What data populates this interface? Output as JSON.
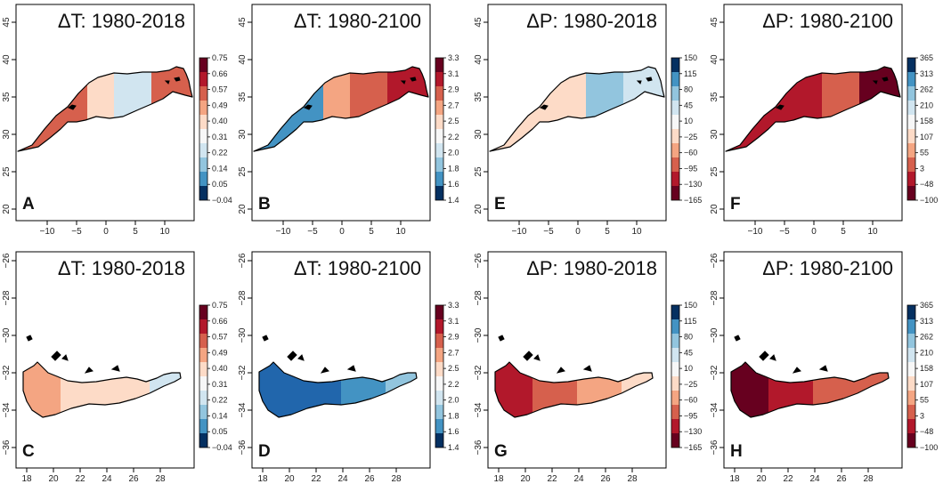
{
  "figure": {
    "panels": [
      {
        "label": "A",
        "title": "ΔT: 1980-2018",
        "region": "north",
        "variable": "temperature",
        "scale": "dT_recent",
        "x_ticks": [
          "−10",
          "−5",
          "0",
          "5",
          "10"
        ],
        "y_ticks": [
          "20",
          "25",
          "30",
          "35",
          "40",
          "45"
        ],
        "fill_colors": [
          "#d6604d",
          "#fddbc7",
          "#d1e5f0",
          "#d6604d"
        ]
      },
      {
        "label": "B",
        "title": "ΔT: 1980-2100",
        "region": "north",
        "variable": "temperature",
        "scale": "dT_future",
        "x_ticks": [
          "−10",
          "−5",
          "0",
          "5",
          "10"
        ],
        "y_ticks": [
          "20",
          "25",
          "30",
          "35",
          "40",
          "45"
        ],
        "fill_colors": [
          "#4393c3",
          "#f4a582",
          "#d6604d",
          "#b2182b"
        ]
      },
      {
        "label": "E",
        "title": "ΔP: 1980-2018",
        "region": "north",
        "variable": "precipitation",
        "scale": "dP",
        "x_ticks": [
          "−10",
          "−5",
          "0",
          "5",
          "10"
        ],
        "y_ticks": [
          "20",
          "25",
          "30",
          "35",
          "40",
          "45"
        ],
        "fill_colors": [
          "#fddbc7",
          "#fddbc7",
          "#92c5de",
          "#d1e5f0"
        ]
      },
      {
        "label": "F",
        "title": "ΔP: 1980-2100",
        "region": "north",
        "variable": "precipitation",
        "scale": "dP_future",
        "x_ticks": [
          "−10",
          "−5",
          "0",
          "5",
          "10"
        ],
        "y_ticks": [
          "20",
          "25",
          "30",
          "35",
          "40",
          "45"
        ],
        "fill_colors": [
          "#b2182b",
          "#b2182b",
          "#d6604d",
          "#67001f"
        ]
      },
      {
        "label": "C",
        "title": "ΔT: 1980-2018",
        "region": "south",
        "variable": "temperature",
        "scale": "dT_recent",
        "x_ticks": [
          "18",
          "20",
          "22",
          "24",
          "26",
          "28"
        ],
        "y_ticks": [
          "−26",
          "−28",
          "−30",
          "−32",
          "−34",
          "−36"
        ],
        "fill_colors": [
          "#f4a582",
          "#fddbc7",
          "#fddbc7",
          "#d1e5f0"
        ]
      },
      {
        "label": "D",
        "title": "ΔT: 1980-2100",
        "region": "south",
        "variable": "temperature",
        "scale": "dT_future",
        "x_ticks": [
          "18",
          "20",
          "22",
          "24",
          "26",
          "28"
        ],
        "y_ticks": [
          "−26",
          "−28",
          "−30",
          "−32",
          "−34",
          "−36"
        ],
        "fill_colors": [
          "#2166ac",
          "#2166ac",
          "#4393c3",
          "#92c5de"
        ]
      },
      {
        "label": "G",
        "title": "ΔP: 1980-2018",
        "region": "south",
        "variable": "precipitation",
        "scale": "dP",
        "x_ticks": [
          "18",
          "20",
          "22",
          "24",
          "26",
          "28"
        ],
        "y_ticks": [
          "−26",
          "−28",
          "−30",
          "−32",
          "−34",
          "−36"
        ],
        "fill_colors": [
          "#b2182b",
          "#d6604d",
          "#f4a582",
          "#fddbc7"
        ]
      },
      {
        "label": "H",
        "title": "ΔP: 1980-2100",
        "region": "south",
        "variable": "precipitation",
        "scale": "dP_future",
        "x_ticks": [
          "18",
          "20",
          "22",
          "24",
          "26",
          "28"
        ],
        "y_ticks": [
          "−26",
          "−28",
          "−30",
          "−32",
          "−34",
          "−36"
        ],
        "fill_colors": [
          "#67001f",
          "#b2182b",
          "#d6604d",
          "#d6604d"
        ]
      }
    ],
    "colorbars": {
      "dT_recent": {
        "labels": [
          "0.75",
          "0.66",
          "0.57",
          "0.49",
          "0.40",
          "0.31",
          "0.22",
          "0.14",
          "0.05",
          "−0.04"
        ],
        "colors": [
          "#67001f",
          "#b2182b",
          "#d6604d",
          "#f4a582",
          "#fddbc7",
          "#f7f7f7",
          "#d1e5f0",
          "#92c5de",
          "#4393c3",
          "#053061"
        ]
      },
      "dT_future": {
        "labels": [
          "3.3",
          "3.1",
          "2.9",
          "2.7",
          "2.5",
          "2.2",
          "2.0",
          "1.8",
          "1.6",
          "1.4"
        ],
        "colors": [
          "#67001f",
          "#b2182b",
          "#d6604d",
          "#f4a582",
          "#fddbc7",
          "#f7f7f7",
          "#d1e5f0",
          "#92c5de",
          "#4393c3",
          "#053061"
        ]
      },
      "dP": {
        "labels": [
          "150",
          "115",
          "80",
          "45",
          "10",
          "−25",
          "−60",
          "−95",
          "−130",
          "−165"
        ],
        "colors": [
          "#053061",
          "#4393c3",
          "#92c5de",
          "#d1e5f0",
          "#f7f7f7",
          "#fddbc7",
          "#f4a582",
          "#d6604d",
          "#b2182b",
          "#67001f"
        ]
      },
      "dP_future": {
        "labels": [
          "365",
          "313",
          "262",
          "210",
          "158",
          "107",
          "55",
          "3",
          "−48",
          "−100"
        ],
        "colors": [
          "#053061",
          "#4393c3",
          "#92c5de",
          "#d1e5f0",
          "#f7f7f7",
          "#fddbc7",
          "#f4a582",
          "#d6604d",
          "#b2182b",
          "#67001f"
        ]
      }
    }
  }
}
